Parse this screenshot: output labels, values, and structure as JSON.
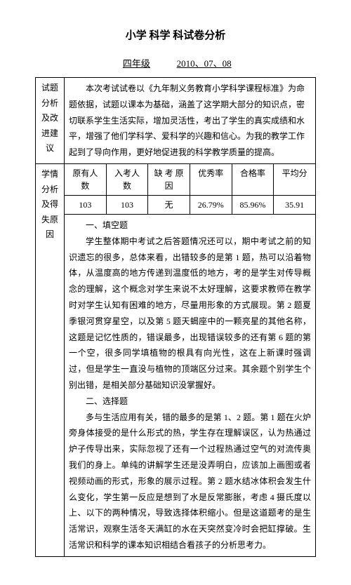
{
  "title": "小学 科学 科试卷分析",
  "grade": "四年级",
  "date": "2010、07、08",
  "section1": {
    "label": "试题分析及改进建议",
    "body": "本次考试试卷以《九年制义务教育小学科学课程标准》为命题依据，试题以课本为基础，涵盖了这学期大部分的知识点，密切联系学生生活实际，增加灵活性，考出了学生的真实成绩和水平，增强了他们学科学、爱科学的兴趣和信心。为我的教学工作起到了导向作用，更好地促进我的科学教学质量的提高。"
  },
  "stats": {
    "headers": [
      "原有人数",
      "入考人数",
      "缺 考 原因",
      "优秀率",
      "合格率",
      "平均分"
    ],
    "row": [
      "103",
      "103",
      "无",
      "26.79%",
      "85.96%",
      "35.91"
    ]
  },
  "section2": {
    "label": "学情分析及得失原因",
    "heading1": "一、填空题",
    "para1": "学生整体期中考试之后答题情况还可以，期中考试之前的知识遗忘的很多，总体来看，出错较多的是第 1 题，热可以沿着物体，从温度高的地方传递到温度低的地方，考的是学生对传导概念的理解，这个概念对学生来说不太好理解，这要求教师在教学时对学生认知有困难的地方，尽量用形象的方式展现。第 2 题夏季银河贯穿星空，以及第 5 题天蝎座中的一颗亮星的其他名称，这题是记忆性质的，错误最多，出现错误较多的还有第 6 题的第一个空，很多同学填植物的根具有向光性，这在上新课时强调过，但是学生一直没与植物的顶端区分过来。其余题个别学生个别出错，是相关部分基础知识没掌握好。",
    "heading2": "二、选择题",
    "para2": "多与生活应用有关，错的最多的是第 1、2 题。第 1 题在火炉旁身体接受的是什么形式的热，学生存在理解误区，认为热通过炉子传导出来，实际忽视了还有一个过程热通过空气的对流传奥我们的身上。单纯的讲解学生还是没弄明白，应该加上画图或者视频动画的形式，形象的展示过程。第 2 题水结冰体积会发生什么变化，学生第一反应是想到了水是反常膨胀，考虑 4 摄氏度以上、以下的两种情况，导致选择体积缩小。但是这道题考的是生活常识，观察生活冬天满缸的水在天突然变冷时会把缸撑破。生活常识和科学的课本知识相结合看孩子的分析思考力。"
  }
}
